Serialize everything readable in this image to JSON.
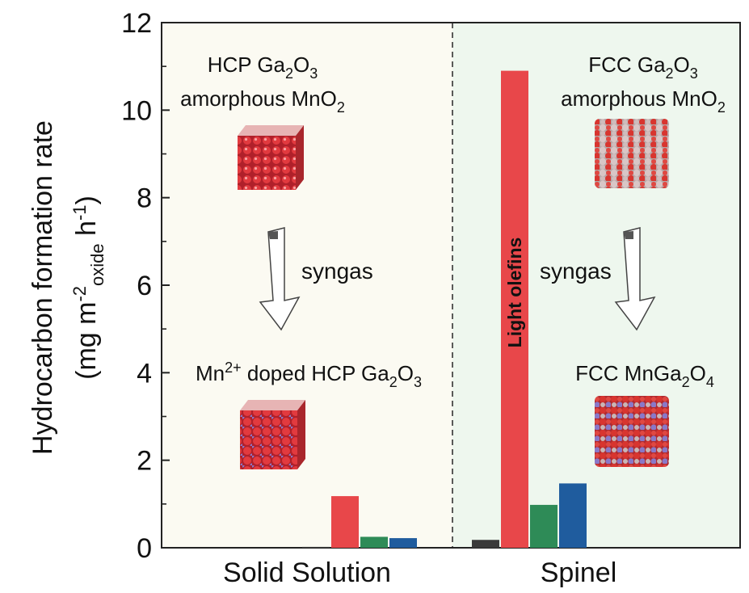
{
  "chart_data": {
    "type": "bar",
    "categories": [
      "Solid Solution",
      "Spinel"
    ],
    "series_colors": [
      "#3a3a3a",
      "#e8474a",
      "#2e8b57",
      "#1f5c9e"
    ],
    "series": [
      {
        "values": [
          0.02,
          0.18
        ]
      },
      {
        "values": [
          1.18,
          10.9
        ]
      },
      {
        "values": [
          0.25,
          0.98
        ]
      },
      {
        "values": [
          0.22,
          1.47
        ]
      }
    ],
    "bar_annotation": "Light olefins",
    "ylabel_line1": "Hydrocarbon formation rate",
    "ylabel_line2": "(mg m",
    "ylabel_sup1": "-2",
    "ylabel_sub": "oxide",
    "ylabel_h": " h",
    "ylabel_sup2": "-1",
    "ylabel_close": ")",
    "ylim": [
      0,
      12
    ],
    "yticks": [
      "0",
      "2",
      "4",
      "6",
      "8",
      "10",
      "12"
    ],
    "region_colors": {
      "left": "#fbfaf2",
      "right": "#eef7ee"
    }
  },
  "panels": {
    "left": {
      "top_line1_a": "HCP Ga",
      "top_line1_sub": "2",
      "top_line1_b": "O",
      "top_line1_sub2": "3",
      "top_line2_a": "amorphous MnO",
      "top_line2_sub": "2",
      "arrow_label": "syngas",
      "bottom_a": "Mn",
      "bottom_sup": "2+",
      "bottom_b": " doped HCP Ga",
      "bottom_sub": "2",
      "bottom_c": "O",
      "bottom_sub2": "3"
    },
    "right": {
      "top_line1_a": "FCC Ga",
      "top_line1_sub": "2",
      "top_line1_b": "O",
      "top_line1_sub2": "3",
      "top_line2_a": "amorphous MnO",
      "top_line2_sub": "2",
      "arrow_label": "syngas",
      "bottom_a": "FCC MnGa",
      "bottom_sub": "2",
      "bottom_b": "O",
      "bottom_sub2": "4"
    }
  }
}
